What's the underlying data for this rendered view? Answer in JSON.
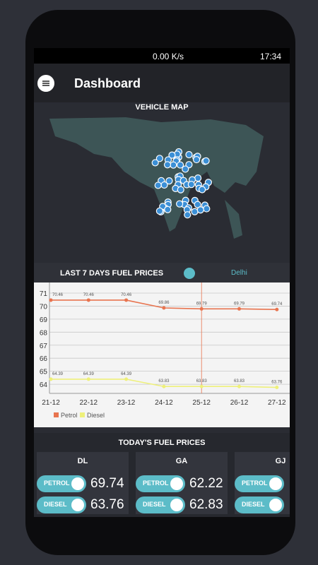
{
  "status_bar": {
    "speed": "0.00 K/s",
    "time": "17:34"
  },
  "header": {
    "title": "Dashboard"
  },
  "vehicle_map": {
    "title": "VEHICLE MAP"
  },
  "fuel_chart": {
    "title": "LAST 7 DAYS FUEL PRICES",
    "city": "Delhi",
    "chart_data": {
      "type": "line",
      "categories": [
        "21-12",
        "22-12",
        "23-12",
        "24-12",
        "25-12",
        "26-12",
        "27-12"
      ],
      "series": [
        {
          "name": "Petrol",
          "color": "#e8744f",
          "values": [
            70.46,
            70.46,
            70.46,
            69.86,
            69.79,
            69.79,
            69.74
          ]
        },
        {
          "name": "Diesel",
          "color": "#eef07a",
          "values": [
            64.39,
            64.39,
            64.39,
            63.83,
            63.83,
            63.83,
            63.76
          ]
        }
      ],
      "ylim": [
        63.3,
        71.4
      ],
      "yticks": [
        64,
        65,
        66,
        67,
        68,
        69,
        70,
        71
      ],
      "grid": true,
      "legend": "bottom-left"
    }
  },
  "todays_prices": {
    "title": "TODAY'S FUEL PRICES",
    "petrol_label": "PETROL",
    "diesel_label": "DIESEL",
    "cards": [
      {
        "state": "DL",
        "petrol": 69.74,
        "diesel": 63.76
      },
      {
        "state": "GA",
        "petrol": 62.22,
        "diesel": 62.83
      },
      {
        "state": "GJ"
      }
    ]
  }
}
